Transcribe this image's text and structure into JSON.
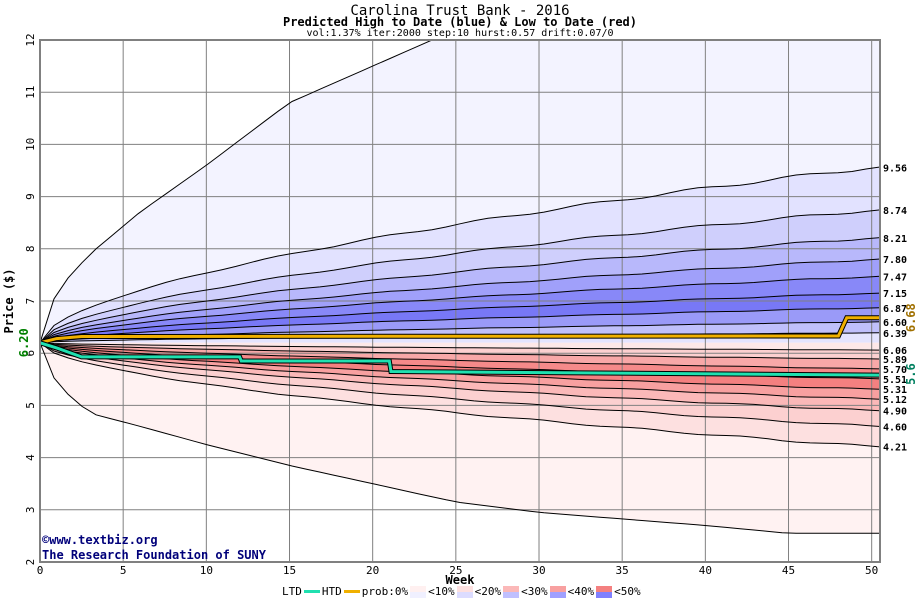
{
  "header": {
    "title": "Carolina Trust Bank - 2016",
    "subtitle": "Predicted High to Date (blue) &  Low to Date (red)",
    "params": "vol:1.37% iter:2000 step:10 hurst:0.57 drift:0.07/0"
  },
  "credit": {
    "line1": "©www.textbiz.org",
    "line2": "The Research Foundation of SUNY"
  },
  "legend": {
    "ltd": "LTD",
    "htd": "HTD",
    "prob": "prob:0%",
    "b10": "<10%",
    "b20": "<20%",
    "b30": "<30%",
    "b40": "<40%",
    "b50": "<50%"
  },
  "colors": {
    "ltd": "#20e0b0",
    "htd": "#f0b000",
    "blue": [
      "#f3f3ff",
      "#e2e2ff",
      "#cfcffc",
      "#b8b8fb",
      "#a0a0fa",
      "#8888f8",
      "#7878f6",
      "#9a9af8",
      "#c0c0fb",
      "#e4e4fe"
    ],
    "red": [
      "#fff2f2",
      "#fde0e0",
      "#fcd0d0",
      "#fbb8b8",
      "#f8a0a0",
      "#f48080",
      "#f58a8a",
      "#f8a8a8",
      "#fcd0d0",
      "#fde8e8"
    ]
  },
  "chart_data": {
    "type": "area",
    "title": "Carolina Trust Bank - 2016",
    "xlabel": "Week",
    "ylabel": "Price ($)",
    "xlim": [
      0,
      50.5
    ],
    "ylim": [
      2,
      12
    ],
    "xticks": [
      0,
      5,
      10,
      15,
      20,
      25,
      30,
      35,
      40,
      45,
      50
    ],
    "yticks": [
      2,
      3,
      4,
      5,
      6,
      7,
      8,
      9,
      10,
      11,
      12
    ],
    "start_price": "6.20",
    "upper_quantiles_end": [
      "9.56",
      "8.74",
      "8.21",
      "7.80",
      "7.47",
      "7.15",
      "6.87",
      "6.60",
      "6.39"
    ],
    "lower_quantiles_end": [
      "6.06",
      "5.89",
      "5.70",
      "5.51",
      "5.31",
      "5.12",
      "4.90",
      "4.60",
      "4.21"
    ],
    "max_envelope": {
      "x": [
        0,
        1,
        3,
        6,
        10,
        15,
        20,
        25,
        50
      ],
      "y": [
        6.2,
        7.2,
        7.9,
        8.7,
        9.6,
        10.8,
        11.5,
        12.2,
        14
      ]
    },
    "min_envelope": {
      "x": [
        0,
        1,
        3,
        6,
        10,
        15,
        20,
        25,
        30,
        40,
        45,
        50
      ],
      "y": [
        6.2,
        5.4,
        4.85,
        4.6,
        4.25,
        3.85,
        3.5,
        3.15,
        2.95,
        2.7,
        2.55,
        2.55
      ]
    },
    "htd": {
      "x": [
        0,
        1,
        2.5,
        48,
        48.5,
        50.5
      ],
      "y": [
        6.2,
        6.28,
        6.32,
        6.33,
        6.68,
        6.68
      ],
      "end_label": "6.68"
    },
    "ltd": {
      "x": [
        0,
        1,
        2.5,
        12,
        12.1,
        21,
        21.1,
        50.5
      ],
      "y": [
        6.2,
        6.1,
        5.93,
        5.93,
        5.85,
        5.85,
        5.65,
        5.58
      ],
      "end_label": "5.6"
    }
  }
}
